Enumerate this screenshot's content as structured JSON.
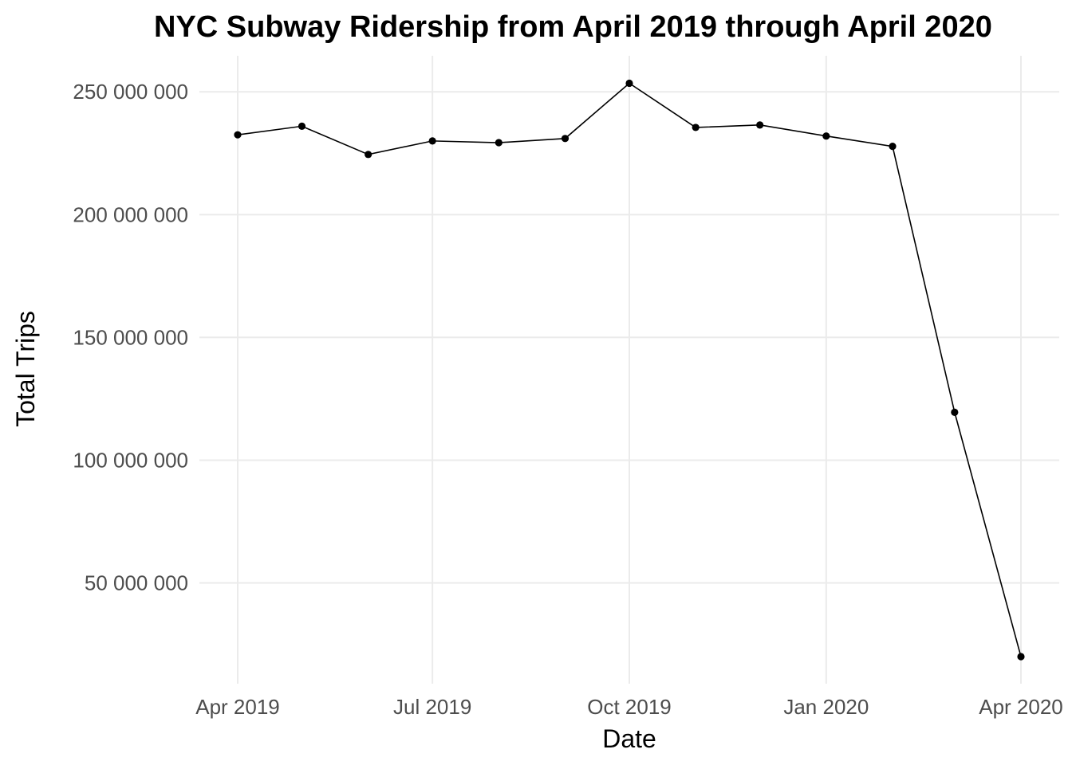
{
  "chart_data": {
    "type": "line",
    "title": "NYC Subway Ridership from April 2019 through April 2020",
    "xlabel": "Date",
    "ylabel": "Total Trips",
    "x_axis_type": "date",
    "xlim": [
      "2019-04-01",
      "2020-04-01"
    ],
    "ylim": [
      20000000,
      253000000
    ],
    "x_ticks": [
      {
        "date": "2019-04-01",
        "label": "Apr 2019"
      },
      {
        "date": "2019-07-01",
        "label": "Jul 2019"
      },
      {
        "date": "2019-10-01",
        "label": "Oct 2019"
      },
      {
        "date": "2020-01-01",
        "label": "Jan 2020"
      },
      {
        "date": "2020-04-01",
        "label": "Apr 2020"
      }
    ],
    "y_ticks": [
      {
        "value": 50000000,
        "label": "50 000 000"
      },
      {
        "value": 100000000,
        "label": "100 000 000"
      },
      {
        "value": 150000000,
        "label": "150 000 000"
      },
      {
        "value": 200000000,
        "label": "200 000 000"
      },
      {
        "value": 250000000,
        "label": "250 000 000"
      }
    ],
    "grid": true,
    "legend": "none",
    "points": [
      {
        "x": "2019-04-01",
        "y": 232500000
      },
      {
        "x": "2019-05-01",
        "y": 236000000
      },
      {
        "x": "2019-06-01",
        "y": 224500000
      },
      {
        "x": "2019-07-01",
        "y": 230000000
      },
      {
        "x": "2019-08-01",
        "y": 229300000
      },
      {
        "x": "2019-09-01",
        "y": 231000000
      },
      {
        "x": "2019-10-01",
        "y": 253500000
      },
      {
        "x": "2019-11-01",
        "y": 235500000
      },
      {
        "x": "2019-12-01",
        "y": 236500000
      },
      {
        "x": "2020-01-01",
        "y": 232000000
      },
      {
        "x": "2020-02-01",
        "y": 227800000
      },
      {
        "x": "2020-03-01",
        "y": 119500000
      },
      {
        "x": "2020-04-01",
        "y": 20000000
      }
    ],
    "colors": {
      "line": "#000000",
      "point": "#000000",
      "grid": "#ebebeb",
      "tick_text": "#4d4d4d"
    }
  }
}
